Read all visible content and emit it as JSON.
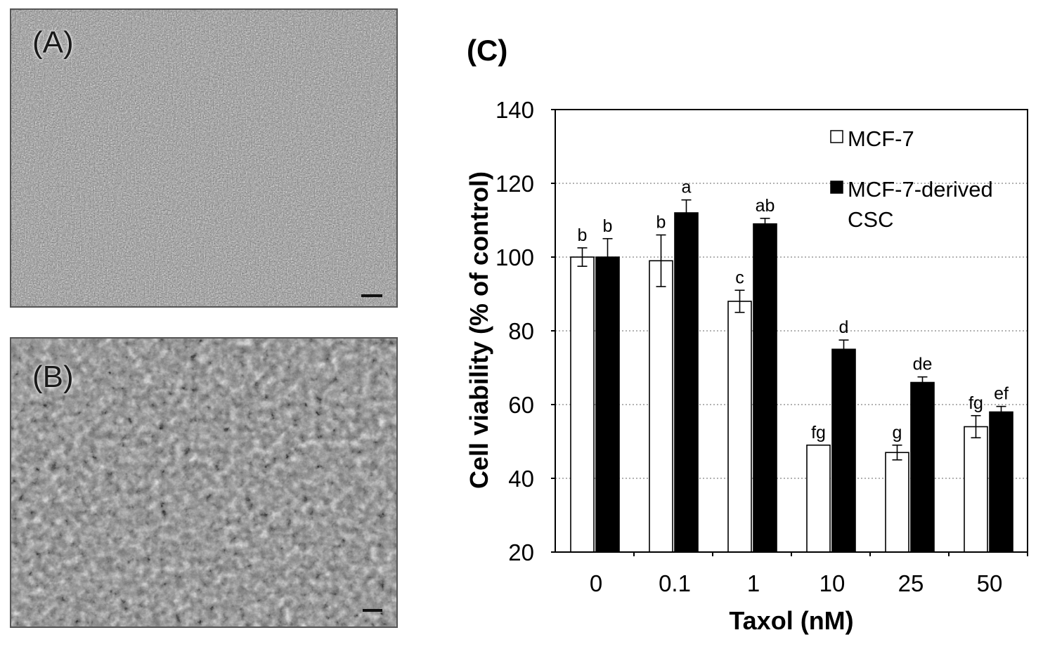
{
  "panels": {
    "a": {
      "label": "(A)"
    },
    "b": {
      "label": "(B)"
    },
    "c": {
      "label": "(C)"
    }
  },
  "chart_data": {
    "type": "bar",
    "xlabel": "Taxol (nM)",
    "ylabel": "Cell viability (% of control)",
    "ylim": [
      20,
      140
    ],
    "yticks": [
      20,
      40,
      60,
      80,
      100,
      120,
      140
    ],
    "categories": [
      "0",
      "0.1",
      "1",
      "10",
      "25",
      "50"
    ],
    "grid": true,
    "legend_position": "top-right",
    "series": [
      {
        "name": "MCF-7",
        "fill": "#ffffff",
        "values": [
          100,
          99,
          88,
          49,
          47,
          54
        ],
        "errors": [
          2.5,
          7,
          3,
          0,
          2,
          3
        ],
        "letters": [
          "b",
          "b",
          "c",
          "fg",
          "g",
          "fg"
        ]
      },
      {
        "name": "MCF-7-derived\nCSC",
        "legend_lines": [
          "MCF-7-derived",
          "CSC"
        ],
        "fill": "#000000",
        "values": [
          100,
          112,
          109,
          75,
          66,
          58
        ],
        "errors": [
          5,
          3.5,
          1.5,
          2.5,
          1.5,
          1.5
        ],
        "letters": [
          "b",
          "a",
          "ab",
          "d",
          "de",
          "ef"
        ]
      }
    ]
  }
}
